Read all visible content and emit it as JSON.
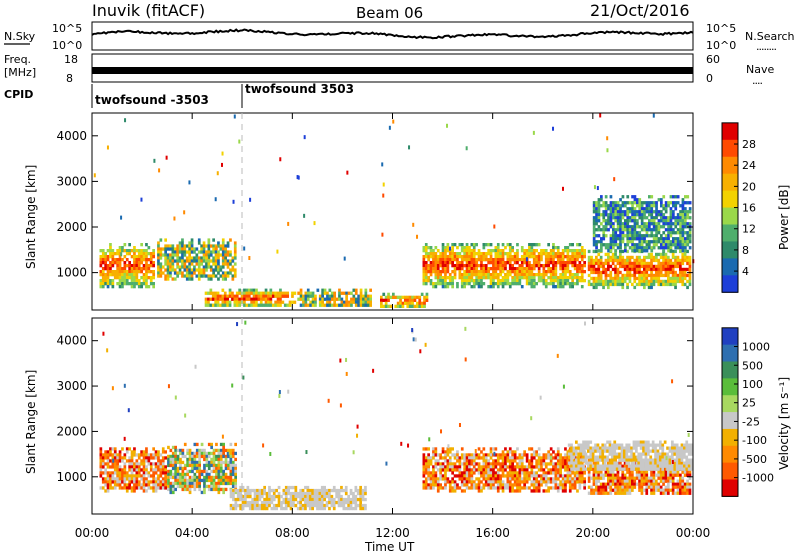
{
  "header": {
    "station": "Inuvik (fitACF)",
    "beam": "Beam 06",
    "date": "21/Oct/2016"
  },
  "noise_panel": {
    "left_label": "N.Sky",
    "right_label": "N.Search",
    "right_legend_dots": "........",
    "left_ticks": [
      "10^5",
      "10^0"
    ],
    "right_ticks": [
      "10^5",
      "10^0"
    ]
  },
  "freq_panel": {
    "left_label_line1": "Freq.",
    "left_label_line2": "[MHz]",
    "left_ticks": [
      "18",
      "8"
    ],
    "right_label": "Nave",
    "right_legend_dots": "....",
    "right_ticks": [
      "60",
      "0"
    ]
  },
  "cpid_panel": {
    "label": "CPID",
    "programs": [
      {
        "name": "twofsound -3503"
      },
      {
        "name": "twofsound 3503"
      }
    ]
  },
  "x_axis": {
    "title": "Time UT",
    "ticks": [
      "00:00",
      "04:00",
      "08:00",
      "12:00",
      "16:00",
      "20:00",
      "00:00"
    ]
  },
  "chart_data": [
    {
      "type": "heatmap",
      "name": "power",
      "ylabel": "Slant Range [km]",
      "xlabel": "Time UT",
      "xlim_hours": [
        0,
        24
      ],
      "ylim": [
        180,
        4500
      ],
      "yticks": [
        "1000",
        "2000",
        "3000",
        "4000"
      ],
      "colorbar_label": "Power [dB]",
      "colorbar_ticks": [
        "28",
        "24",
        "20",
        "16",
        "12",
        "8",
        "4"
      ],
      "colorbar_colors": [
        "#e00000",
        "#ff4a00",
        "#ff8a00",
        "#f7b000",
        "#f2d200",
        "#9ad84a",
        "#4fae6c",
        "#2e8a6a",
        "#1a6ab0",
        "#1d3fd8"
      ],
      "echo_regions": [
        {
          "t_start": 0.3,
          "t_end": 2.6,
          "range_start": 650,
          "range_end": 1650,
          "level": "high"
        },
        {
          "t_start": 2.6,
          "t_end": 5.8,
          "range_start": 800,
          "range_end": 1750,
          "level": "medium"
        },
        {
          "t_start": 4.5,
          "t_end": 8.2,
          "range_start": 250,
          "range_end": 650,
          "level": "high"
        },
        {
          "t_start": 8.2,
          "t_end": 11.2,
          "range_start": 250,
          "range_end": 650,
          "level": "medium"
        },
        {
          "t_start": 11.5,
          "t_end": 13.5,
          "range_start": 220,
          "range_end": 560,
          "level": "high"
        },
        {
          "t_start": 13.2,
          "t_end": 19.8,
          "range_start": 650,
          "range_end": 1650,
          "level": "high"
        },
        {
          "t_start": 19.8,
          "t_end": 24.0,
          "range_start": 600,
          "range_end": 1500,
          "level": "high"
        },
        {
          "t_start": 20.0,
          "t_end": 24.0,
          "range_start": 1400,
          "range_end": 2700,
          "level": "low"
        }
      ]
    },
    {
      "type": "heatmap",
      "name": "velocity",
      "ylabel": "Slant Range [km]",
      "xlabel": "Time UT",
      "xlim_hours": [
        0,
        24
      ],
      "ylim": [
        180,
        4500
      ],
      "yticks": [
        "1000",
        "2000",
        "3000",
        "4000"
      ],
      "colorbar_label": "Velocity [m s⁻¹]",
      "colorbar_ticks": [
        "1000",
        "500",
        "100",
        "25",
        "-25",
        "-100",
        "-500",
        "-1000"
      ],
      "colorbar_colors": [
        "#2040c0",
        "#2e6fb0",
        "#3a8f5a",
        "#5abd3a",
        "#a8d860",
        "#c8c8c8",
        "#f2b000",
        "#ff8a00",
        "#ff5a00",
        "#e00000"
      ],
      "echo_regions": [
        {
          "t_start": 0.3,
          "t_end": 3.0,
          "range_start": 650,
          "range_end": 1650,
          "level": "negative"
        },
        {
          "t_start": 3.0,
          "t_end": 5.8,
          "range_start": 600,
          "range_end": 1750,
          "level": "mixed"
        },
        {
          "t_start": 5.5,
          "t_end": 11.0,
          "range_start": 250,
          "range_end": 800,
          "level": "near_zero"
        },
        {
          "t_start": 13.2,
          "t_end": 19.8,
          "range_start": 650,
          "range_end": 1650,
          "level": "negative"
        },
        {
          "t_start": 19.8,
          "t_end": 24.0,
          "range_start": 600,
          "range_end": 1400,
          "level": "negative"
        },
        {
          "t_start": 19.0,
          "t_end": 24.0,
          "range_start": 1100,
          "range_end": 1800,
          "level": "near_zero"
        }
      ]
    }
  ]
}
